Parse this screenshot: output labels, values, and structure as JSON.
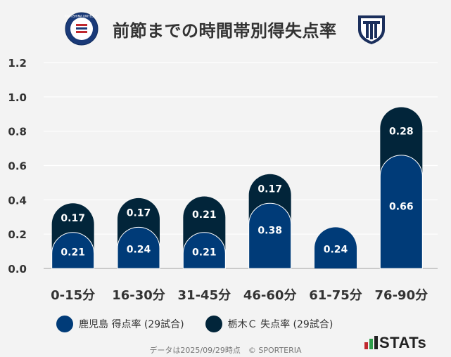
{
  "header": {
    "title": "前節までの時間帯別得失点率",
    "left_logo_text": "KAGOSHIMA UNITED FC"
  },
  "chart_data": {
    "type": "bar",
    "stacked": true,
    "title": "前節までの時間帯別得失点率",
    "categories": [
      "0-15分",
      "16-30分",
      "31-45分",
      "46-60分",
      "61-75分",
      "76-90分"
    ],
    "series": [
      {
        "name": "鹿児島 得点率 (29試合)",
        "color": "#003b78",
        "values": [
          0.21,
          0.24,
          0.21,
          0.38,
          0.24,
          0.66
        ]
      },
      {
        "name": "栃木Ｃ 失点率 (29試合)",
        "color": "#02253a",
        "values": [
          0.17,
          0.17,
          0.21,
          0.17,
          0.0,
          0.28
        ]
      }
    ],
    "ylim": [
      0,
      1.2
    ],
    "yticks": [
      "0.0",
      "0.2",
      "0.4",
      "0.6",
      "0.8",
      "1.0",
      "1.2"
    ],
    "ytick_values": [
      0,
      0.2,
      0.4,
      0.6,
      0.8,
      1.0,
      1.2
    ],
    "data_labels_series0": [
      "0.21",
      "0.24",
      "0.21",
      "0.38",
      "0.24",
      "0.66"
    ],
    "data_labels_series1": [
      "0.17",
      "0.17",
      "0.21",
      "0.17",
      "",
      "0.28"
    ],
    "grid": true,
    "legend": "bottom"
  },
  "footer": {
    "note": "データは2025/09/29時点　© SPORTERIA",
    "brand": "STATs"
  }
}
